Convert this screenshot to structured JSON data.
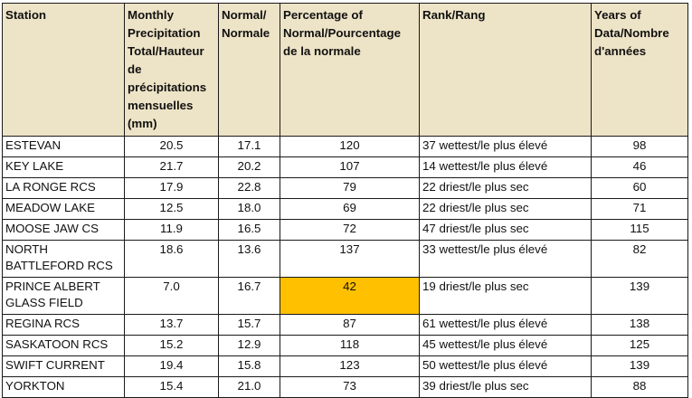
{
  "headers": {
    "station": "Station",
    "monthly": "Monthly Precipitation Total/Hauteur de précipitations mensuelles (mm)",
    "normal": "Normal/ Normale",
    "percent": "Percentage of Normal/Pourcentage de la normale",
    "rank": "Rank/Rang",
    "years": "Years of Data/Nombre d'années"
  },
  "highlight_color": "#ffc000",
  "header_bg": "#ede3c6",
  "rows": [
    {
      "station": "ESTEVAN",
      "monthly": "20.5",
      "normal": "17.1",
      "percent": "120",
      "rank": "37 wettest/le plus élevé",
      "years": "98"
    },
    {
      "station": "KEY LAKE",
      "monthly": "21.7",
      "normal": "20.2",
      "percent": "107",
      "rank": "14 wettest/le plus élevé",
      "years": "46"
    },
    {
      "station": "LA RONGE RCS",
      "monthly": "17.9",
      "normal": "22.8",
      "percent": "79",
      "rank": "22 driest/le plus sec",
      "years": "60"
    },
    {
      "station": "MEADOW LAKE",
      "monthly": "12.5",
      "normal": "18.0",
      "percent": "69",
      "rank": "22 driest/le plus sec",
      "years": "71"
    },
    {
      "station": "MOOSE JAW CS",
      "monthly": "11.9",
      "normal": "16.5",
      "percent": "72",
      "rank": "47 driest/le plus sec",
      "years": "115"
    },
    {
      "station": "NORTH BATTLEFORD RCS",
      "monthly": "18.6",
      "normal": "13.6",
      "percent": "137",
      "rank": "33 wettest/le plus élevé",
      "years": "82"
    },
    {
      "station": "PRINCE ALBERT GLASS FIELD",
      "monthly": "7.0",
      "normal": "16.7",
      "percent": "42",
      "rank": "19 driest/le plus sec",
      "years": "139"
    },
    {
      "station": "REGINA RCS",
      "monthly": "13.7",
      "normal": "15.7",
      "percent": "87",
      "rank": "61 wettest/le plus élevé",
      "years": "138"
    },
    {
      "station": "SASKATOON RCS",
      "monthly": "15.2",
      "normal": "12.9",
      "percent": "118",
      "rank": "45 wettest/le plus élevé",
      "years": "125"
    },
    {
      "station": "SWIFT CURRENT",
      "monthly": "19.4",
      "normal": "15.8",
      "percent": "123",
      "rank": "50 wettest/le plus élevé",
      "years": "139"
    },
    {
      "station": "YORKTON",
      "monthly": "15.4",
      "normal": "21.0",
      "percent": "73",
      "rank": "39 driest/le plus sec",
      "years": "88"
    }
  ]
}
